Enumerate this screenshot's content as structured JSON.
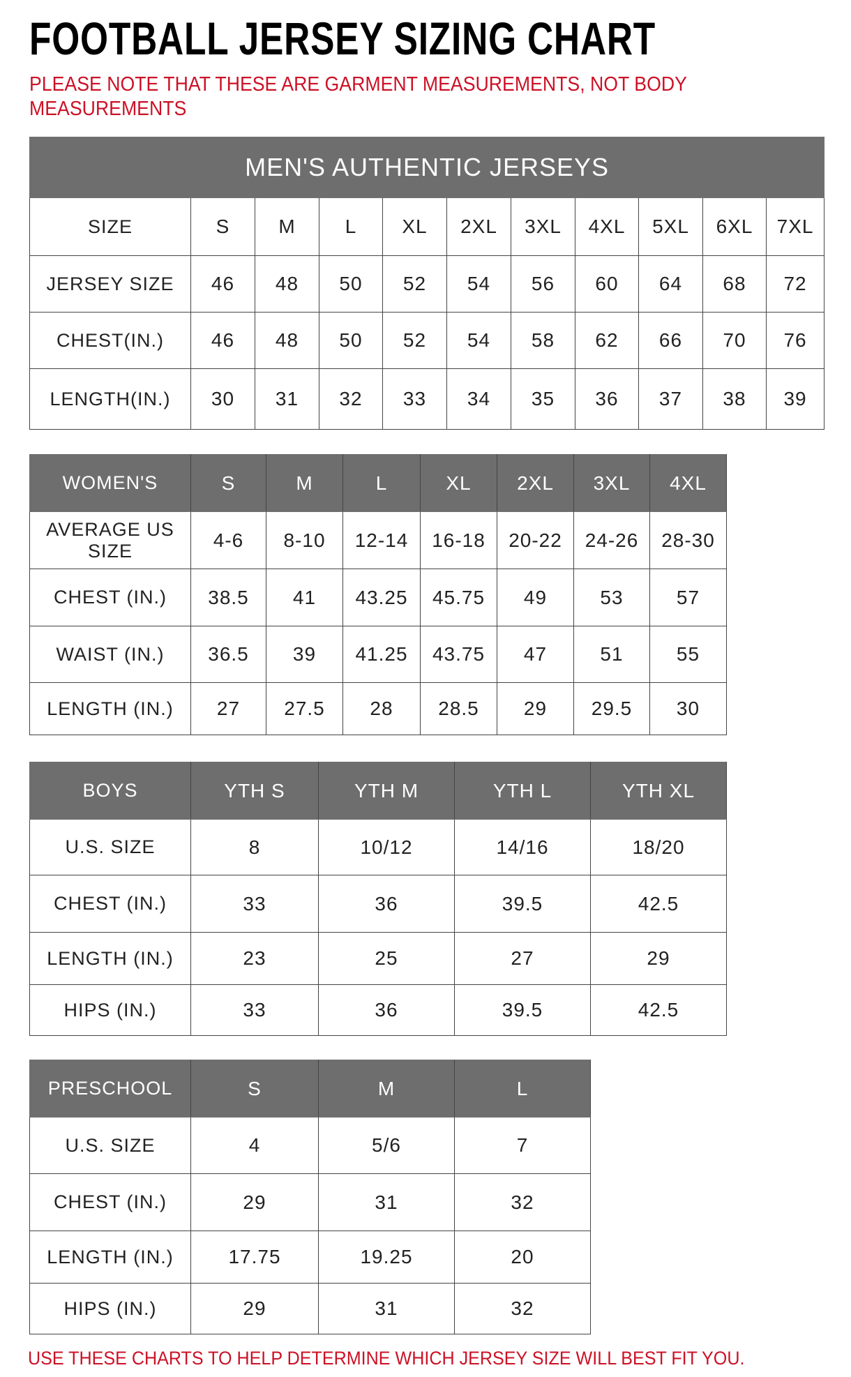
{
  "title": "FOOTBALL JERSEY SIZING CHART",
  "note": "PLEASE NOTE THAT THESE ARE GARMENT MEASUREMENTS, NOT BODY MEASUREMENTS",
  "footer": "USE THESE CHARTS TO HELP DETERMINE WHICH JERSEY SIZE WILL BEST FIT YOU.",
  "colors": {
    "header_gray": "#6e6e6e",
    "accent_red": "#cc1126"
  },
  "chart_data": [
    {
      "type": "table",
      "title": "MEN'S AUTHENTIC JERSEYS",
      "rows": [
        [
          "SIZE",
          "S",
          "M",
          "L",
          "XL",
          "2XL",
          "3XL",
          "4XL",
          "5XL",
          "6XL",
          "7XL"
        ],
        [
          "JERSEY SIZE",
          "46",
          "48",
          "50",
          "52",
          "54",
          "56",
          "60",
          "64",
          "68",
          "72"
        ],
        [
          "CHEST(IN.)",
          "46",
          "48",
          "50",
          "52",
          "54",
          "58",
          "62",
          "66",
          "70",
          "76"
        ],
        [
          "LENGTH(IN.)",
          "30",
          "31",
          "32",
          "33",
          "34",
          "35",
          "36",
          "37",
          "38",
          "39"
        ]
      ]
    },
    {
      "type": "table",
      "rows": [
        [
          "WOMEN'S",
          "S",
          "M",
          "L",
          "XL",
          "2XL",
          "3XL",
          "4XL"
        ],
        [
          "AVERAGE US SIZE",
          "4-6",
          "8-10",
          "12-14",
          "16-18",
          "20-22",
          "24-26",
          "28-30"
        ],
        [
          "CHEST (IN.)",
          "38.5",
          "41",
          "43.25",
          "45.75",
          "49",
          "53",
          "57"
        ],
        [
          "WAIST (IN.)",
          "36.5",
          "39",
          "41.25",
          "43.75",
          "47",
          "51",
          "55"
        ],
        [
          "LENGTH (IN.)",
          "27",
          "27.5",
          "28",
          "28.5",
          "29",
          "29.5",
          "30"
        ]
      ]
    },
    {
      "type": "table",
      "rows": [
        [
          "BOYS",
          "YTH S",
          "YTH M",
          "YTH L",
          "YTH XL"
        ],
        [
          "U.S. SIZE",
          "8",
          "10/12",
          "14/16",
          "18/20"
        ],
        [
          "CHEST (IN.)",
          "33",
          "36",
          "39.5",
          "42.5"
        ],
        [
          "LENGTH (IN.)",
          "23",
          "25",
          "27",
          "29"
        ],
        [
          "HIPS (IN.)",
          "33",
          "36",
          "39.5",
          "42.5"
        ]
      ]
    },
    {
      "type": "table",
      "rows": [
        [
          "PRESCHOOL",
          "S",
          "M",
          "L"
        ],
        [
          "U.S. SIZE",
          "4",
          "5/6",
          "7"
        ],
        [
          "CHEST (IN.)",
          "29",
          "31",
          "32"
        ],
        [
          "LENGTH (IN.)",
          "17.75",
          "19.25",
          "20"
        ],
        [
          "HIPS (IN.)",
          "29",
          "31",
          "32"
        ]
      ]
    }
  ]
}
